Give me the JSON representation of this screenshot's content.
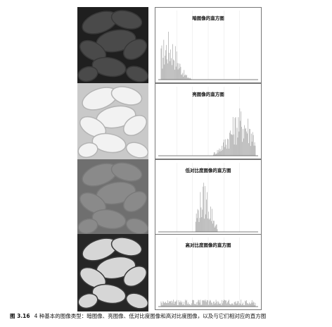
{
  "panels": [
    {
      "id": "dark",
      "title": "暗图像的直方图",
      "tone": {
        "bg": "#1f1f1f",
        "bean": "#4a4a4a",
        "line": "#383838"
      },
      "histogram": {
        "range": [
          0.0,
          0.32
        ],
        "peak": 0.08
      }
    },
    {
      "id": "bright",
      "title": "亮图像的直方图",
      "tone": {
        "bg": "#c9c9c9",
        "bean": "#f2f2f2",
        "line": "#b4b4b4"
      },
      "histogram": {
        "range": [
          0.55,
          1.0
        ],
        "peak": 0.85
      }
    },
    {
      "id": "low-contrast",
      "title": "低对比度图像的直方图",
      "tone": {
        "bg": "#6f6f6f",
        "bean": "#8a8a8a",
        "line": "#7a7a7a"
      },
      "histogram": {
        "range": [
          0.36,
          0.6
        ],
        "peak": 0.46
      }
    },
    {
      "id": "high-contrast",
      "title": "高对比度图像的直方图",
      "tone": {
        "bg": "#262626",
        "bean": "#d6d6d6",
        "line": "#3a3a3a"
      },
      "histogram": {
        "range": [
          0.0,
          1.0
        ],
        "peak": 0.5
      }
    }
  ],
  "caption": {
    "number": "图 3.16",
    "text": "4 种基本的图像类型：暗图像、亮图像、低对比度图像和高对比度图像，以及与它们相对应的直方图"
  }
}
